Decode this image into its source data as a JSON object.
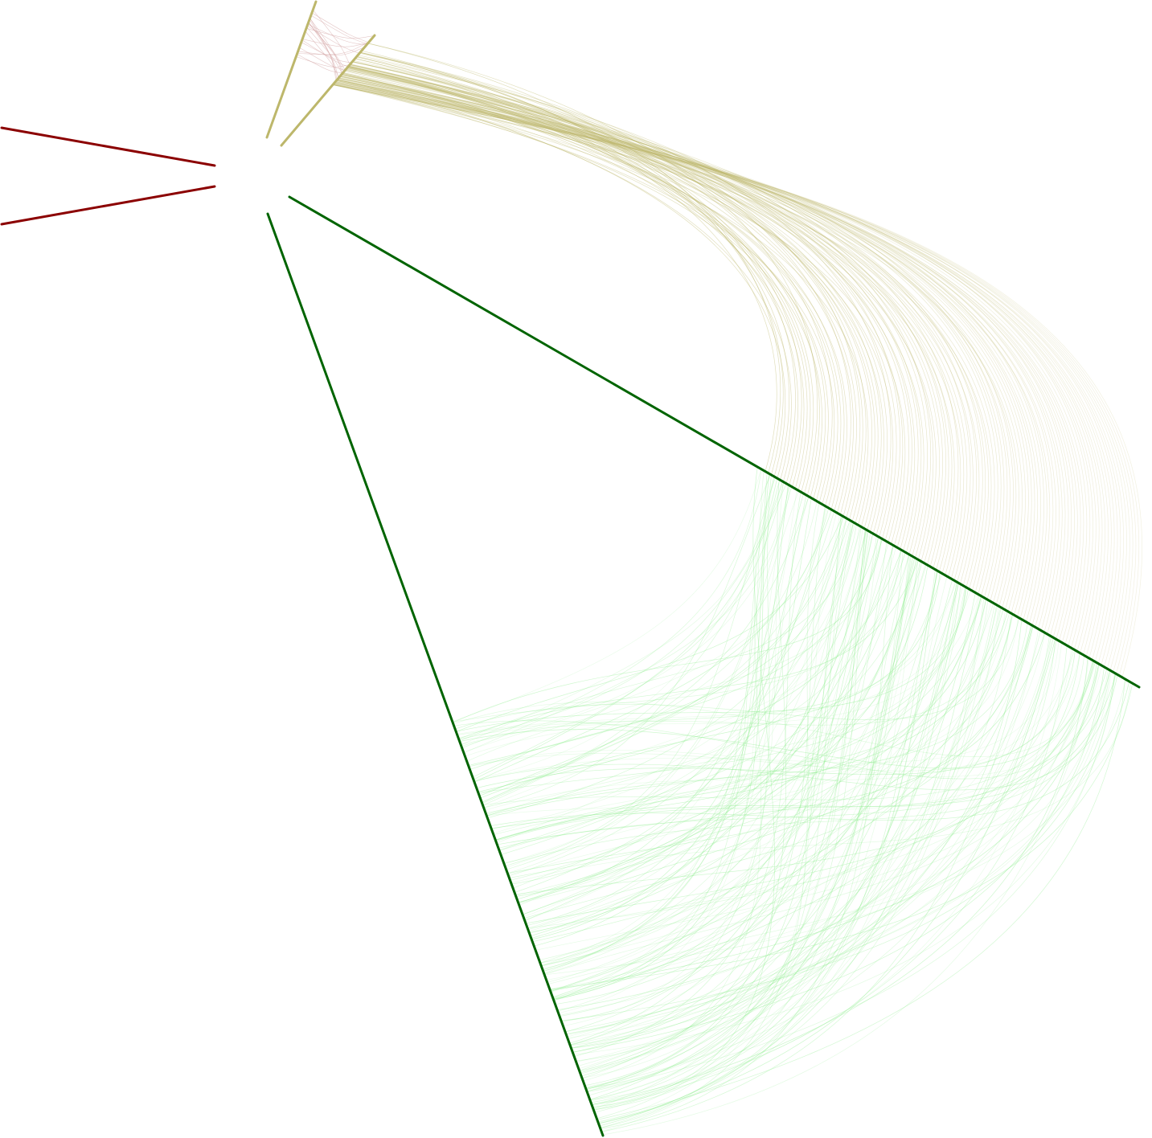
{
  "diagram": {
    "type": "hive-plot",
    "axes": [
      {
        "id": "red-axis",
        "color": "#8b0000",
        "doubled": true
      },
      {
        "id": "khaki-axis",
        "color": "#bdb76b",
        "doubled": true
      },
      {
        "id": "green-axis",
        "color": "#006400",
        "doubled": true
      }
    ],
    "edge_groups": [
      {
        "id": "khaki-self-links",
        "color": "#c0bc7a",
        "from": "khaki-axis",
        "to": "khaki-axis",
        "count": 22
      },
      {
        "id": "khaki-to-green-links",
        "color": "#bdb76b",
        "from": "khaki-axis",
        "to": "green-axis",
        "count": 120
      },
      {
        "id": "green-self-links",
        "color": "#90ee90",
        "from": "green-axis",
        "to": "green-axis",
        "count": 220
      }
    ]
  }
}
